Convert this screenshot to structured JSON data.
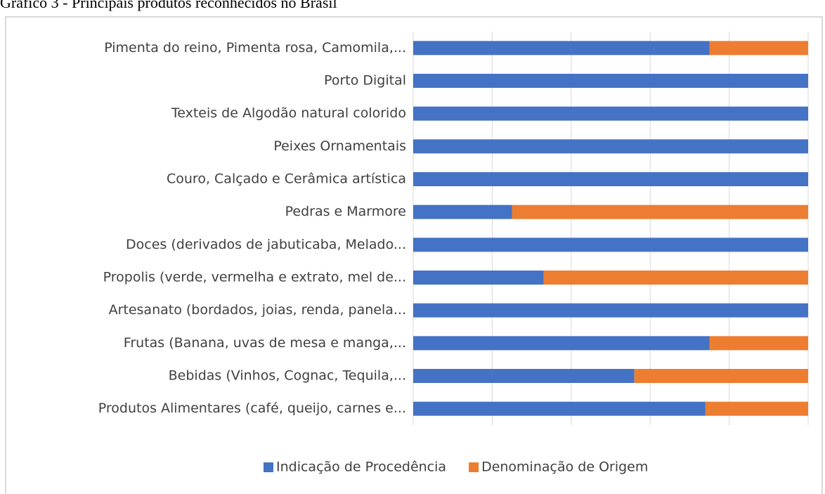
{
  "chart_data": {
    "type": "stacked-bar-horizontal",
    "title": "Gráfico 3 - Principais produtos reconhecidos no Brasil",
    "categories": [
      "Pimenta do reino, Pimenta rosa, Camomila,...",
      "Porto Digital",
      "Texteis de Algodão natural colorido",
      "Peixes Ornamentais",
      "Couro, Calçado e Cerâmica artística",
      "Pedras e Marmore",
      "Doces (derivados de jabuticaba, Melado...",
      "Propolis (verde, vermelha e extrato, mel de...",
      "Artesanato (bordados, joias, renda, panela...",
      "Frutas (Banana, uvas de mesa e manga,...",
      "Bebidas (Vinhos, Cognac, Tequila,...",
      "Produtos Alimentares (café, queijo, carnes e..."
    ],
    "series": [
      {
        "name": "Indicação de Procedência",
        "color": "#4472c4",
        "values": [
          75,
          100,
          100,
          100,
          100,
          25,
          100,
          33,
          100,
          75,
          56,
          74
        ]
      },
      {
        "name": "Denominação de Origem",
        "color": "#ed7d31",
        "values": [
          25,
          0,
          0,
          0,
          0,
          75,
          0,
          67,
          0,
          25,
          44,
          26
        ]
      }
    ],
    "xlim": [
      0,
      100
    ],
    "xticks": [
      0,
      20,
      40,
      60,
      80,
      100
    ],
    "grid": true,
    "legend": "bottom"
  }
}
